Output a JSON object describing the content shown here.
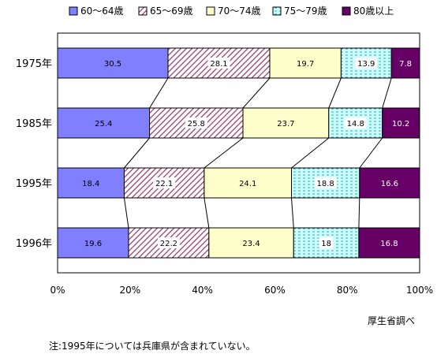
{
  "chart_data": {
    "type": "bar",
    "orientation": "horizontal",
    "stacked": "percent",
    "categories": [
      "1975年",
      "1985年",
      "1995年",
      "1996年"
    ],
    "series": [
      {
        "name": "60～64歳",
        "values": [
          30.5,
          25.4,
          18.4,
          19.6
        ],
        "labels": [
          "30.5",
          "25.4",
          "18.4",
          "19.6"
        ],
        "color": "#8080ff",
        "pattern": "solid"
      },
      {
        "name": "65～69歳",
        "values": [
          28.1,
          25.8,
          22.1,
          22.2
        ],
        "labels": [
          "28.1",
          "25.8",
          "22.1",
          "22.2"
        ],
        "color": "#993366",
        "pattern": "diagonal-hatch"
      },
      {
        "name": "70～74歳",
        "values": [
          19.7,
          23.7,
          24.1,
          23.4
        ],
        "labels": [
          "19.7",
          "23.7",
          "24.1",
          "23.4"
        ],
        "color": "#ffffcc",
        "pattern": "solid"
      },
      {
        "name": "75～79歳",
        "values": [
          13.9,
          14.8,
          18.8,
          18.0
        ],
        "labels": [
          "13.9",
          "14.8",
          "18.8",
          "18"
        ],
        "color": "#ccffff",
        "pattern": "horizontal-dash"
      },
      {
        "name": "80歳以上",
        "values": [
          7.8,
          10.2,
          16.6,
          16.8
        ],
        "labels": [
          "7.8",
          "10.2",
          "16.6",
          "16.8"
        ],
        "color": "#660066",
        "pattern": "solid"
      }
    ],
    "xlim": [
      0,
      100
    ],
    "xticks": [
      "0%",
      "20%",
      "40%",
      "60%",
      "80%",
      "100%"
    ],
    "legend_position": "top",
    "series_connector_lines": true,
    "grid": false
  },
  "source_note": "厚生省調べ",
  "footnote": "注:1995年については兵庫県が含まれていない。"
}
